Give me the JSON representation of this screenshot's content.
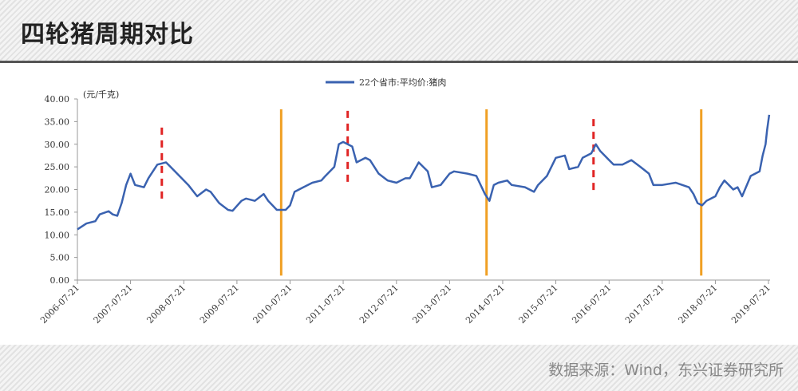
{
  "title": "四轮猪周期对比",
  "source": "数据来源：Wind，东兴证券研究所",
  "chart_data": {
    "type": "line",
    "y_label": "(元/千克)",
    "legend": "top",
    "series": [
      {
        "name": "22个省市:平均价:猪肉",
        "color": "#3a62b0",
        "x": [
          "2006-07-21",
          "2006-09-21",
          "2006-11-21",
          "2006-12-21",
          "2007-02-21",
          "2007-03-21",
          "2007-04-21",
          "2007-05-21",
          "2007-06-21",
          "2007-07-21",
          "2007-08-21",
          "2007-10-21",
          "2007-11-21",
          "2008-01-21",
          "2008-03-21",
          "2008-04-21",
          "2008-06-21",
          "2008-08-21",
          "2008-10-21",
          "2008-12-21",
          "2009-01-21",
          "2009-03-21",
          "2009-05-21",
          "2009-06-21",
          "2009-08-21",
          "2009-09-21",
          "2009-11-21",
          "2010-01-21",
          "2010-02-21",
          "2010-04-21",
          "2010-06-21",
          "2010-07-21",
          "2010-08-21",
          "2010-10-21",
          "2010-12-21",
          "2011-02-21",
          "2011-03-21",
          "2011-05-21",
          "2011-06-21",
          "2011-07-21",
          "2011-09-21",
          "2011-10-21",
          "2011-12-21",
          "2012-01-21",
          "2012-03-21",
          "2012-05-21",
          "2012-07-21",
          "2012-09-21",
          "2012-10-21",
          "2012-12-21",
          "2013-02-21",
          "2013-03-21",
          "2013-05-21",
          "2013-07-21",
          "2013-08-21",
          "2013-11-21",
          "2014-01-21",
          "2014-03-21",
          "2014-04-21",
          "2014-05-21",
          "2014-06-21",
          "2014-08-21",
          "2014-09-21",
          "2014-12-21",
          "2015-02-21",
          "2015-03-21",
          "2015-05-21",
          "2015-07-21",
          "2015-09-21",
          "2015-10-21",
          "2015-12-21",
          "2016-01-21",
          "2016-03-21",
          "2016-04-21",
          "2016-05-21",
          "2016-07-21",
          "2016-08-21",
          "2016-10-21",
          "2016-12-21",
          "2017-02-21",
          "2017-04-21",
          "2017-05-21",
          "2017-07-21",
          "2017-10-21",
          "2018-01-21",
          "2018-02-21",
          "2018-03-21",
          "2018-04-21",
          "2018-05-21",
          "2018-07-21",
          "2018-08-21",
          "2018-09-21",
          "2018-11-21",
          "2018-12-21",
          "2019-01-21",
          "2019-03-21",
          "2019-05-21",
          "2019-06-11",
          "2019-07-01",
          "2019-07-11",
          "2019-07-26"
        ],
        "values": [
          11.2,
          12.5,
          13,
          14.5,
          15.2,
          14.5,
          14.2,
          17,
          21,
          23.5,
          21,
          20.5,
          22.5,
          25.5,
          26,
          25,
          23,
          21,
          18.5,
          20,
          19.5,
          17,
          15.5,
          15.3,
          17.5,
          18,
          17.5,
          19,
          17.5,
          15.5,
          15.5,
          16.5,
          19.5,
          20.5,
          21.5,
          22,
          23,
          25,
          30,
          30.5,
          29.5,
          26,
          27,
          26.5,
          23.5,
          22,
          21.5,
          22.5,
          22.5,
          26,
          24,
          20.5,
          21,
          23.5,
          24,
          23.5,
          23,
          19,
          17.5,
          21,
          21.5,
          22,
          21,
          20.5,
          19.5,
          21,
          23,
          27,
          27.5,
          24.5,
          25,
          27,
          28,
          30,
          28.5,
          26.5,
          25.5,
          25.5,
          26.5,
          25,
          23.5,
          21,
          21,
          21.5,
          20.5,
          19,
          17,
          16.5,
          17.5,
          18.5,
          20.5,
          22,
          20,
          20.5,
          18.5,
          23,
          24,
          27.5,
          30,
          33,
          36.5
        ]
      }
    ],
    "vlines": [
      {
        "x": "2008-02-21",
        "y": [
          18,
          34
        ],
        "color": "#e02424",
        "dashed": true
      },
      {
        "x": "2011-08-21",
        "y": [
          21.7,
          37.5
        ],
        "color": "#e02424",
        "dashed": true
      },
      {
        "x": "2016-04-05",
        "y": [
          19.9,
          35.8
        ],
        "color": "#e02424",
        "dashed": true
      },
      {
        "x": "2010-05-21",
        "y": [
          1,
          37.7
        ],
        "color": "#f0a024",
        "dashed": false
      },
      {
        "x": "2014-04-01",
        "y": [
          1,
          37.7
        ],
        "color": "#f0a024",
        "dashed": false
      },
      {
        "x": "2018-04-15",
        "y": [
          1,
          37.7
        ],
        "color": "#f0a024",
        "dashed": false
      }
    ],
    "xlim": [
      "2006-07-21",
      "2019-08-01"
    ],
    "xticks": [
      "2006-07-21",
      "2007-07-21",
      "2008-07-21",
      "2009-07-21",
      "2010-07-21",
      "2011-07-21",
      "2012-07-21",
      "2013-07-21",
      "2014-07-21",
      "2015-07-21",
      "2016-07-21",
      "2017-07-21",
      "2018-07-21",
      "2019-07-21"
    ],
    "ylim": [
      0,
      40
    ],
    "yticks": [
      {
        "value": 0,
        "label": "0.00"
      },
      {
        "value": 5,
        "label": "5.00"
      },
      {
        "value": 10,
        "label": "10.00"
      },
      {
        "value": 15,
        "label": "15.00"
      },
      {
        "value": 20,
        "label": "20.00"
      },
      {
        "value": 25,
        "label": "25.00"
      },
      {
        "value": 30,
        "label": "30.00"
      },
      {
        "value": 35,
        "label": "35.00"
      },
      {
        "value": 40,
        "label": "40.00"
      }
    ]
  }
}
